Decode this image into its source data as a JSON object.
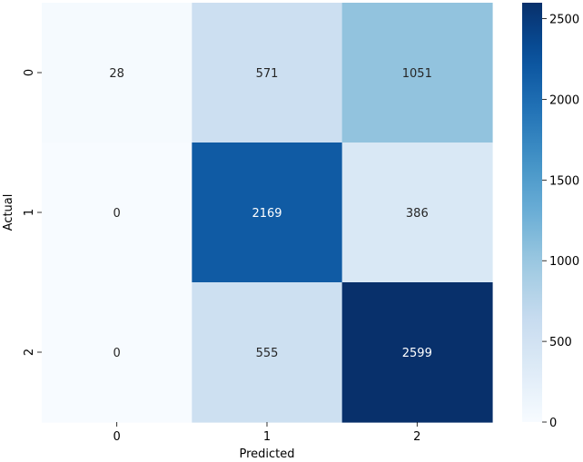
{
  "chart_data": {
    "type": "heatmap",
    "title": "",
    "xlabel": "Predicted",
    "ylabel": "Actual",
    "x_categories": [
      "0",
      "1",
      "2"
    ],
    "y_categories": [
      "0",
      "1",
      "2"
    ],
    "values": [
      [
        28,
        571,
        1051
      ],
      [
        0,
        2169,
        386
      ],
      [
        0,
        555,
        2599
      ]
    ],
    "colormap": "Blues",
    "color_range": [
      0,
      2599
    ],
    "colorbar_ticks": [
      0,
      500,
      1000,
      1500,
      2000,
      2500
    ],
    "colorbar_tick_labels": [
      "0",
      "500",
      "1000",
      "1500",
      "2000",
      "2500"
    ],
    "value_format": "d"
  }
}
